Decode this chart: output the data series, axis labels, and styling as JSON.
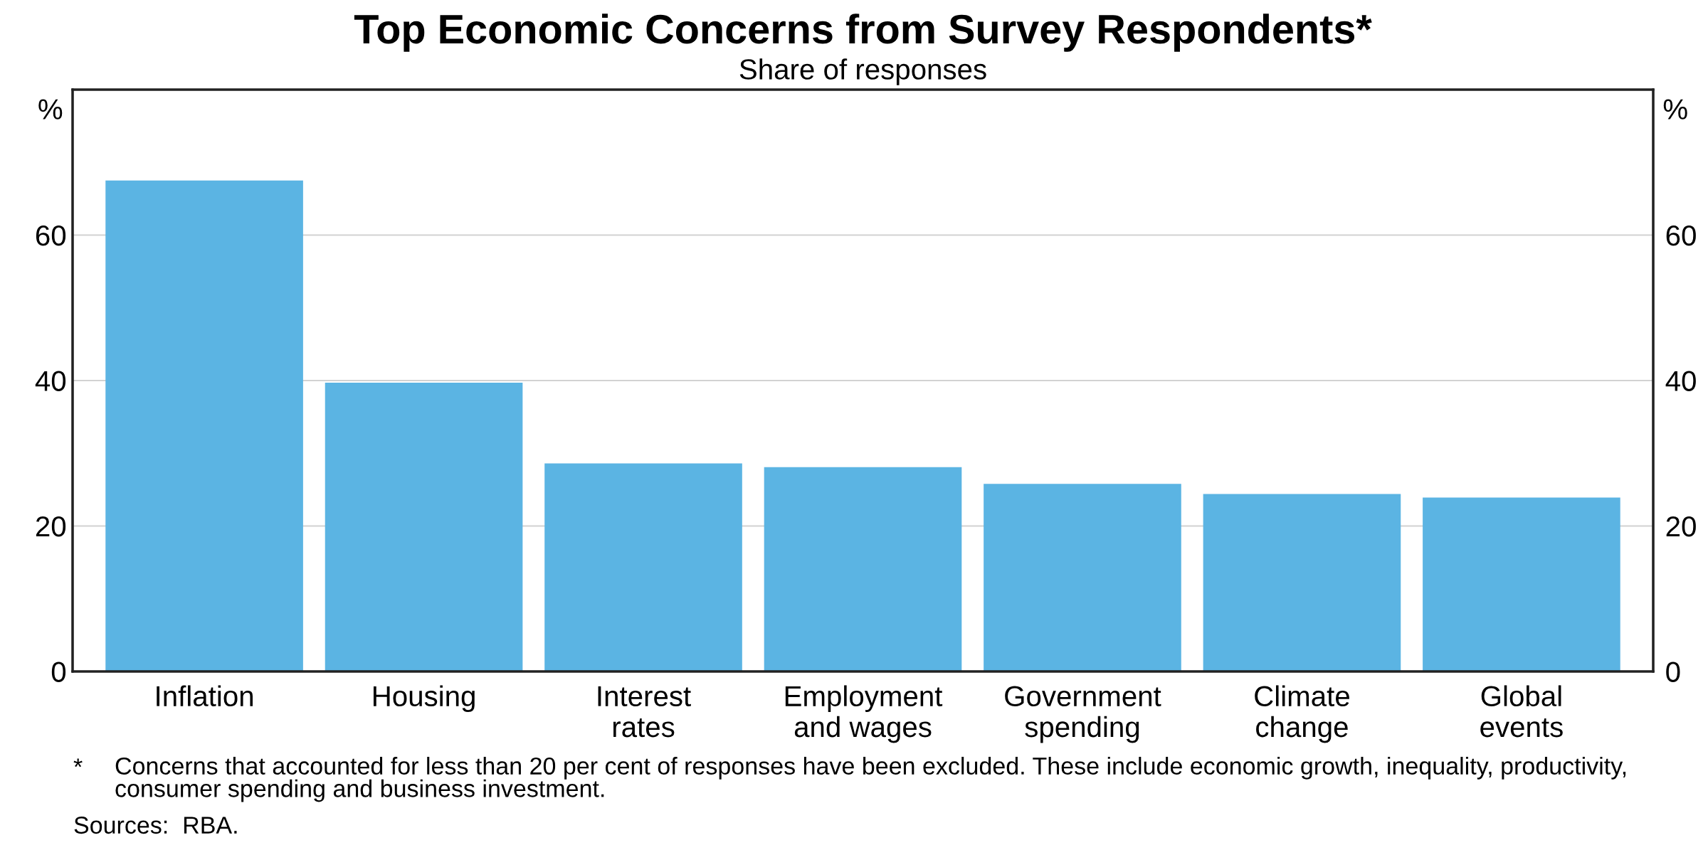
{
  "chart_data": {
    "type": "bar",
    "title": "Top Economic Concerns from Survey Respondents*",
    "subtitle": "Share of responses",
    "ylabel": "%",
    "y2label": "%",
    "categories": [
      "Inflation",
      "Housing",
      "Interest\nrates",
      "Employment\nand wages",
      "Government\nspending",
      "Climate\nchange",
      "Global\nevents"
    ],
    "values": [
      67.5,
      39.7,
      28.6,
      28.1,
      25.8,
      24.4,
      23.9
    ],
    "color": "#5bb4e3",
    "ylim": [
      0,
      80
    ],
    "yticks": [
      0,
      20,
      40,
      60
    ],
    "y2lim": [
      0,
      80
    ],
    "y2ticks": [
      0,
      20,
      40,
      60
    ],
    "grid": "y",
    "annotations": [
      "*",
      "Concerns that accounted for less than 20 per cent of responses have been excluded. These include economic growth, inequality, productivity, consumer spending and business investment.",
      "Sources:  RBA."
    ]
  }
}
